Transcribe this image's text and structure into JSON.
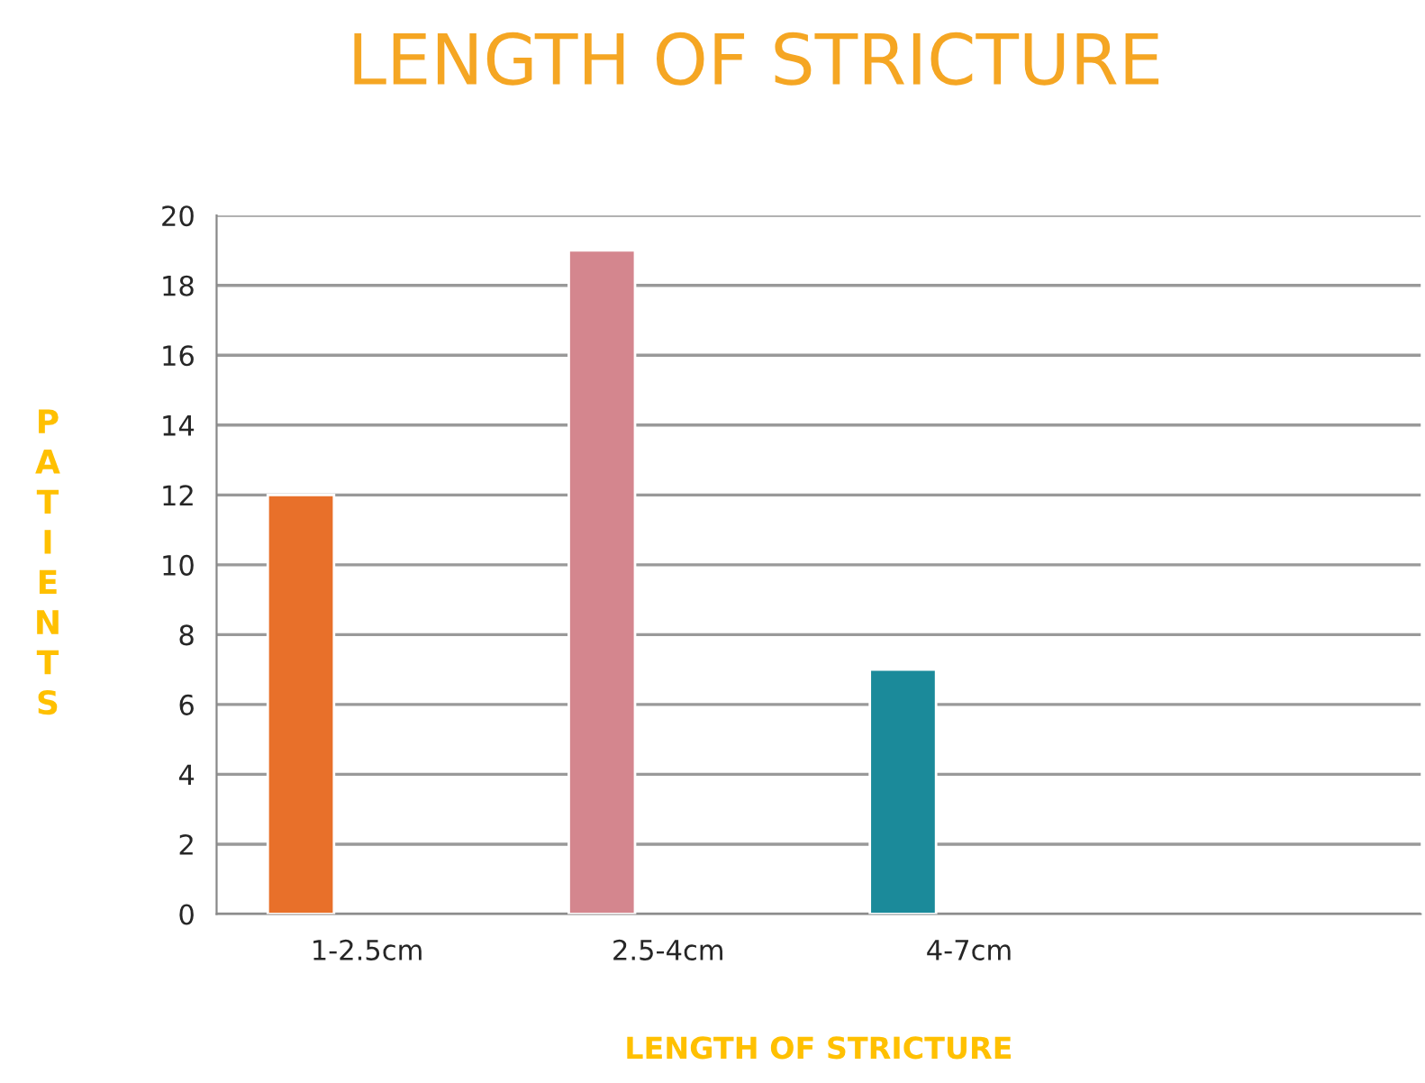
{
  "chart_data": {
    "type": "bar",
    "title": "LENGTH OF STRICTURE",
    "xlabel": "LENGTH OF STRICTURE",
    "ylabel": "PATIENTS",
    "categories": [
      "1-2.5cm",
      "2.5-4cm",
      "4-7cm",
      null
    ],
    "values": [
      12,
      19,
      7,
      null
    ],
    "colors": [
      "#e8702a",
      "#d4868e",
      "#1b8a9a",
      "#888888"
    ],
    "ylim": [
      0,
      20
    ],
    "yticks": [
      0,
      2,
      4,
      6,
      8,
      10,
      12,
      14,
      16,
      18,
      20
    ],
    "grid": "y",
    "legend": false
  }
}
